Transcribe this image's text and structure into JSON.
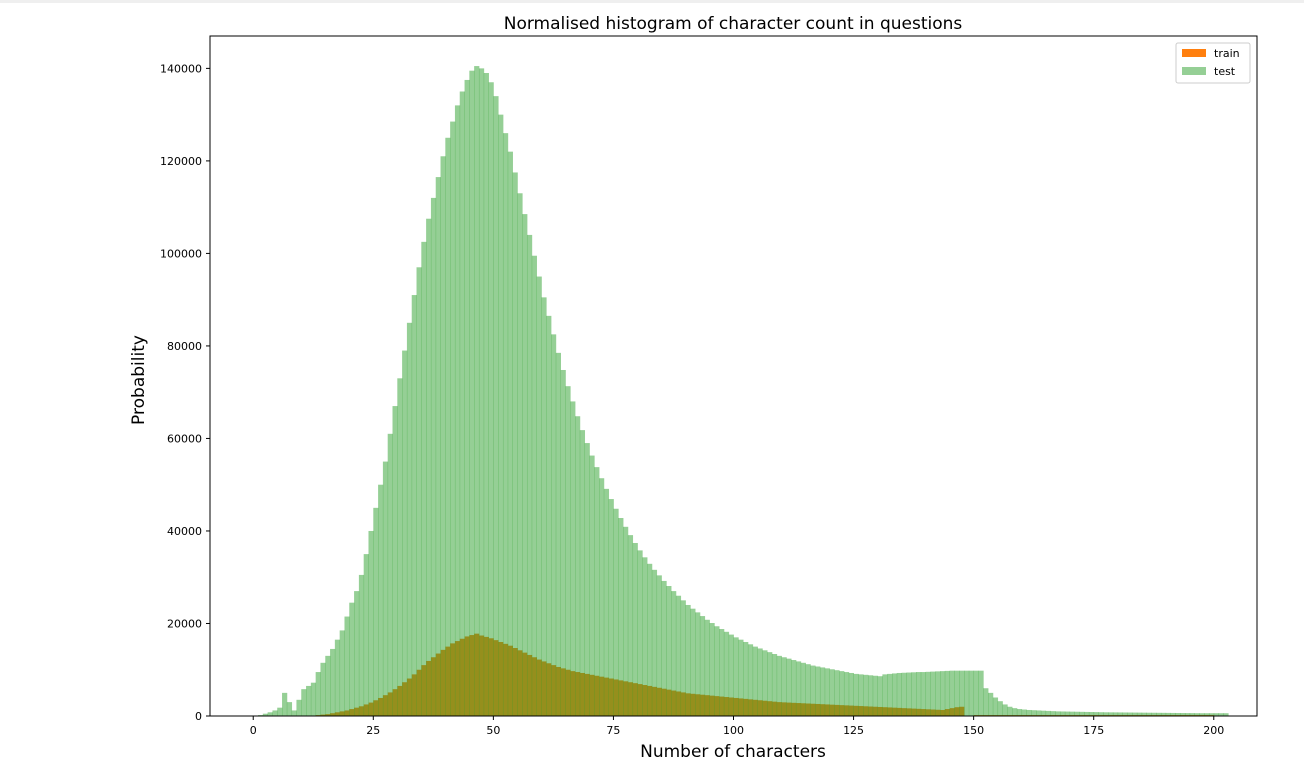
{
  "chart_data": {
    "type": "bar",
    "title": "Normalised histogram of character count in questions",
    "xlabel": "Number of characters",
    "ylabel": "Probability",
    "xlim": [
      -9,
      209
    ],
    "ylim": [
      0,
      147000
    ],
    "xticks": [
      0,
      25,
      50,
      75,
      100,
      125,
      150,
      175,
      200
    ],
    "yticks": [
      0,
      20000,
      40000,
      60000,
      80000,
      100000,
      120000,
      140000
    ],
    "grid": false,
    "legend_position": "top-right",
    "bin_width": 1,
    "x_start": 0,
    "series": [
      {
        "name": "train",
        "color": "#ff7f0e",
        "values": [
          0,
          0,
          0,
          0,
          0,
          0,
          0,
          0,
          0,
          0,
          0,
          0,
          100,
          200,
          300,
          400,
          600,
          800,
          1000,
          1200,
          1500,
          1800,
          2100,
          2500,
          2900,
          3400,
          3900,
          4500,
          5100,
          5800,
          6500,
          7300,
          8100,
          9000,
          10000,
          11000,
          11900,
          12700,
          13500,
          14300,
          15000,
          15700,
          16200,
          16700,
          17200,
          17500,
          17800,
          17400,
          17100,
          16800,
          16400,
          16000,
          15600,
          15200,
          14700,
          14200,
          13700,
          13200,
          12700,
          12200,
          11800,
          11400,
          11000,
          10600,
          10300,
          10000,
          9700,
          9500,
          9300,
          9100,
          8900,
          8700,
          8500,
          8300,
          8100,
          7900,
          7700,
          7500,
          7300,
          7100,
          6900,
          6700,
          6500,
          6300,
          6100,
          5900,
          5700,
          5500,
          5300,
          5100,
          4900,
          4800,
          4700,
          4600,
          4500,
          4400,
          4300,
          4200,
          4100,
          4000,
          3900,
          3800,
          3700,
          3600,
          3500,
          3400,
          3300,
          3200,
          3100,
          3000,
          2950,
          2900,
          2850,
          2800,
          2750,
          2700,
          2650,
          2600,
          2550,
          2500,
          2450,
          2400,
          2350,
          2300,
          2250,
          2200,
          2150,
          2100,
          2050,
          2000,
          1950,
          1900,
          1850,
          1800,
          1750,
          1700,
          1650,
          1600,
          1550,
          1500,
          1450,
          1400,
          1350,
          1300,
          1500,
          1700,
          1900,
          2000,
          0,
          0,
          200,
          200,
          200,
          200,
          200,
          200,
          200,
          200,
          200,
          200,
          200,
          200,
          200,
          200,
          200,
          200,
          200,
          200,
          200,
          200,
          200,
          200,
          200,
          200,
          200,
          200,
          200,
          200,
          200,
          200,
          200,
          200,
          200,
          200,
          200,
          200,
          200,
          200,
          200,
          200,
          200,
          200,
          200,
          200,
          200,
          200,
          200,
          200,
          200,
          200
        ]
      },
      {
        "name": "test",
        "color": "#2ca02c",
        "values": [
          0,
          200,
          500,
          800,
          1200,
          1800,
          5000,
          3000,
          1200,
          3500,
          5800,
          6500,
          7200,
          9500,
          11500,
          13000,
          14500,
          16500,
          18500,
          21500,
          24500,
          27000,
          30500,
          35000,
          40000,
          45000,
          50000,
          55000,
          61000,
          67000,
          73000,
          79000,
          85000,
          91000,
          97000,
          102500,
          107500,
          112000,
          116500,
          121000,
          125000,
          128500,
          132000,
          135000,
          137500,
          139500,
          140500,
          140000,
          139000,
          137000,
          134000,
          130000,
          126000,
          122000,
          117500,
          113000,
          108500,
          104000,
          99500,
          95000,
          90500,
          86500,
          82500,
          78500,
          74800,
          71300,
          68000,
          64800,
          61800,
          59000,
          56300,
          53800,
          51400,
          49100,
          46900,
          44800,
          42800,
          40900,
          39100,
          37400,
          35800,
          34300,
          32900,
          31600,
          30400,
          29200,
          28100,
          27000,
          26000,
          25000,
          24000,
          23200,
          22400,
          21600,
          20800,
          20100,
          19400,
          18800,
          18200,
          17600,
          17000,
          16500,
          16000,
          15500,
          15000,
          14600,
          14200,
          13800,
          13400,
          13000,
          12700,
          12400,
          12100,
          11800,
          11500,
          11200,
          10900,
          10700,
          10500,
          10300,
          10100,
          9900,
          9700,
          9500,
          9300,
          9100,
          9000,
          8900,
          8800,
          8700,
          8600,
          9000,
          9100,
          9200,
          9300,
          9350,
          9400,
          9450,
          9500,
          9500,
          9550,
          9600,
          9650,
          9700,
          9750,
          9800,
          9800,
          9800,
          9800,
          9800,
          9800,
          9800,
          6000,
          5000,
          4000,
          3200,
          2500,
          2000,
          1700,
          1500,
          1400,
          1300,
          1250,
          1200,
          1150,
          1100,
          1050,
          1000,
          980,
          960,
          940,
          920,
          900,
          880,
          860,
          840,
          820,
          800,
          790,
          780,
          770,
          760,
          750,
          740,
          730,
          720,
          710,
          700,
          690,
          680,
          670,
          660,
          650,
          640,
          630,
          620,
          610,
          600,
          600,
          600,
          600,
          600,
          600
        ]
      }
    ]
  }
}
